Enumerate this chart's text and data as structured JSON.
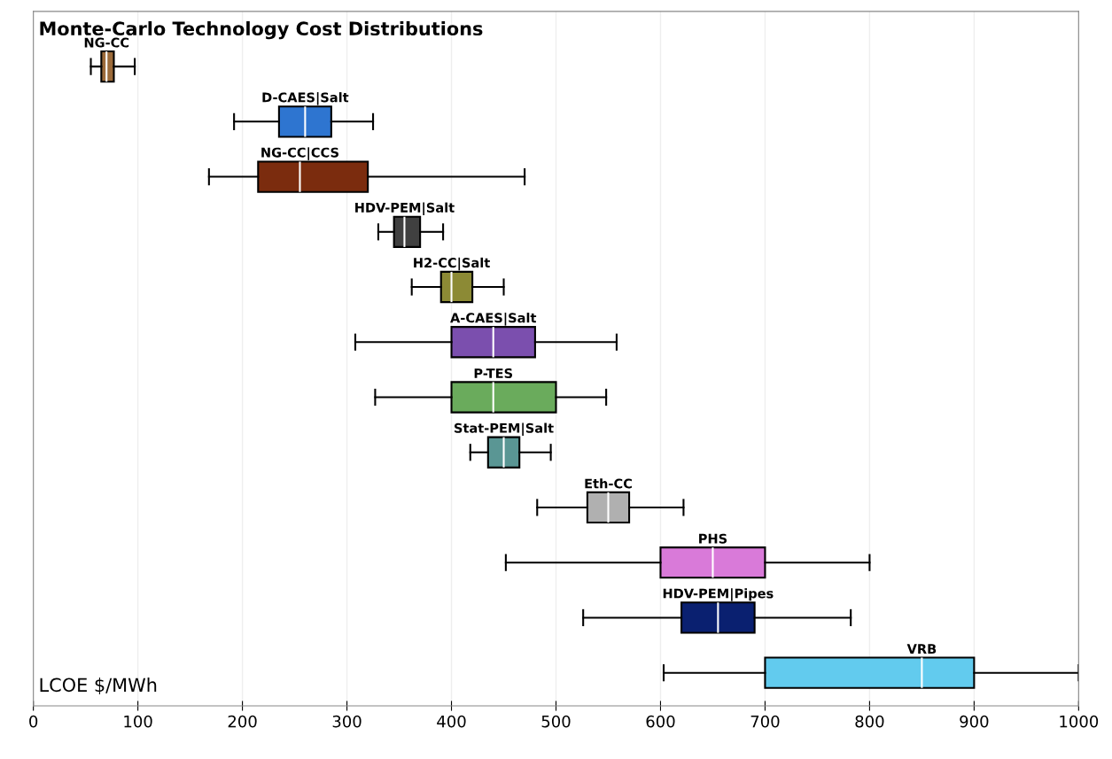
{
  "chart_data": {
    "type": "box",
    "orientation": "horizontal",
    "title": "Monte-Carlo Technology Cost Distributions",
    "xlabel": "LCOE $/MWh",
    "categories": [
      "NG-CC",
      "D-CAES|Salt",
      "NG-CC|CCS",
      "HDV-PEM|Salt",
      "H2-CC|Salt",
      "A-CAES|Salt",
      "P-TES",
      "Stat-PEM|Salt",
      "Eth-CC",
      "PHS",
      "HDV-PEM|Pipes",
      "VRB"
    ],
    "colors": [
      "#9c6b3a",
      "#2e75d0",
      "#7b2c0e",
      "#404040",
      "#8c8a35",
      "#7b4fae",
      "#6aab5c",
      "#5a9694",
      "#b0b0b0",
      "#d97ad9",
      "#0a2070",
      "#62cbee"
    ],
    "boxes": [
      {
        "low": 55,
        "q1": 65,
        "median": 70,
        "q3": 77,
        "high": 97
      },
      {
        "low": 192,
        "q1": 235,
        "median": 260,
        "q3": 285,
        "high": 325
      },
      {
        "low": 168,
        "q1": 215,
        "median": 255,
        "q3": 320,
        "high": 470
      },
      {
        "low": 330,
        "q1": 345,
        "median": 355,
        "q3": 370,
        "high": 392
      },
      {
        "low": 362,
        "q1": 390,
        "median": 400,
        "q3": 420,
        "high": 450
      },
      {
        "low": 308,
        "q1": 400,
        "median": 440,
        "q3": 480,
        "high": 558
      },
      {
        "low": 327,
        "q1": 400,
        "median": 440,
        "q3": 500,
        "high": 548
      },
      {
        "low": 418,
        "q1": 435,
        "median": 450,
        "q3": 465,
        "high": 495
      },
      {
        "low": 482,
        "q1": 530,
        "median": 550,
        "q3": 570,
        "high": 622
      },
      {
        "low": 452,
        "q1": 600,
        "median": 650,
        "q3": 700,
        "high": 800
      },
      {
        "low": 526,
        "q1": 620,
        "median": 655,
        "q3": 690,
        "high": 782
      },
      {
        "low": 603,
        "q1": 700,
        "median": 850,
        "q3": 900,
        "high": 1000
      }
    ],
    "xlim": [
      0,
      1000
    ],
    "xticks": [
      0,
      100,
      200,
      300,
      400,
      500,
      600,
      700,
      800,
      900,
      1000
    ],
    "tick_labels": "x",
    "grid": "x",
    "data_labels": true
  }
}
